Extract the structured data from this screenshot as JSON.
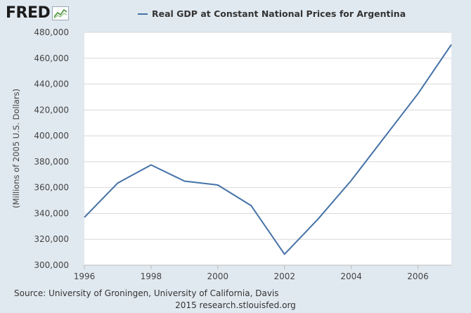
{
  "logo": {
    "text": "FRED",
    "mark": "fred-chart-logo-icon"
  },
  "colors": {
    "series": "#4572a7",
    "plot_bg": "#ffffff",
    "grid": "#d8d8d8",
    "page_bg": "#e1e9f0"
  },
  "chart_data": {
    "type": "line",
    "title": "",
    "xlabel": "",
    "ylabel": "(Millions of 2005 U.S. Dollars)",
    "xlim": [
      1996,
      2007
    ],
    "ylim": [
      300000,
      480000
    ],
    "xticks": [
      1996,
      1998,
      2000,
      2002,
      2004,
      2006
    ],
    "xtick_labels": [
      "1996",
      "1998",
      "2000",
      "2002",
      "2004",
      "2006"
    ],
    "yticks": [
      300000,
      320000,
      340000,
      360000,
      380000,
      400000,
      420000,
      440000,
      460000,
      480000
    ],
    "ytick_labels": [
      "300,000",
      "320,000",
      "340,000",
      "360,000",
      "380,000",
      "400,000",
      "420,000",
      "440,000",
      "460,000",
      "480,000"
    ],
    "grid": "horizontal",
    "legend": "top-center",
    "series": [
      {
        "name": "Real GDP at Constant National Prices for Argentina",
        "x": [
          1996,
          1997,
          1998,
          1999,
          2000,
          2001,
          2002,
          2003,
          2004,
          2005,
          2006,
          2007
        ],
        "values": [
          337000,
          363500,
          377500,
          365000,
          362000,
          346000,
          308500,
          335500,
          365500,
          399000,
          432500,
          470500
        ]
      }
    ]
  },
  "source": {
    "line1": "Source: University of Groningen, University of California, Davis",
    "line2": "2015 research.stlouisfed.org"
  }
}
